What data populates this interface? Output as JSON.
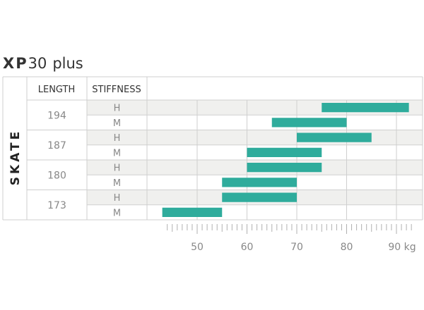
{
  "title": {
    "model": "XP",
    "number": "30",
    "suffix": "plus"
  },
  "side_label": "SKATE",
  "headers": {
    "length": "LENGTH",
    "stiffness": "STIFFNESS"
  },
  "colors": {
    "bar": "#2fac9c",
    "row_shade": "#f0f0ee",
    "grid": "#cfcfcf",
    "text": "#333333",
    "muted": "#888888"
  },
  "chart_data": {
    "type": "bar",
    "orientation": "horizontal-range",
    "x_unit": "kg",
    "xlim": [
      40,
      95
    ],
    "x_ticks": [
      50,
      60,
      70,
      80,
      90
    ],
    "x_minor_step": 1,
    "grid": true,
    "groups": [
      {
        "length": "194",
        "rows": [
          {
            "stiffness": "H",
            "range": [
              75,
              92.5
            ]
          },
          {
            "stiffness": "M",
            "range": [
              65,
              80
            ]
          }
        ]
      },
      {
        "length": "187",
        "rows": [
          {
            "stiffness": "H",
            "range": [
              70,
              85
            ]
          },
          {
            "stiffness": "M",
            "range": [
              60,
              75
            ]
          }
        ]
      },
      {
        "length": "180",
        "rows": [
          {
            "stiffness": "H",
            "range": [
              60,
              75
            ]
          },
          {
            "stiffness": "M",
            "range": [
              55,
              70
            ]
          }
        ]
      },
      {
        "length": "173",
        "rows": [
          {
            "stiffness": "H",
            "range": [
              55,
              70
            ]
          },
          {
            "stiffness": "M",
            "range": [
              43,
              55
            ]
          }
        ]
      }
    ]
  }
}
